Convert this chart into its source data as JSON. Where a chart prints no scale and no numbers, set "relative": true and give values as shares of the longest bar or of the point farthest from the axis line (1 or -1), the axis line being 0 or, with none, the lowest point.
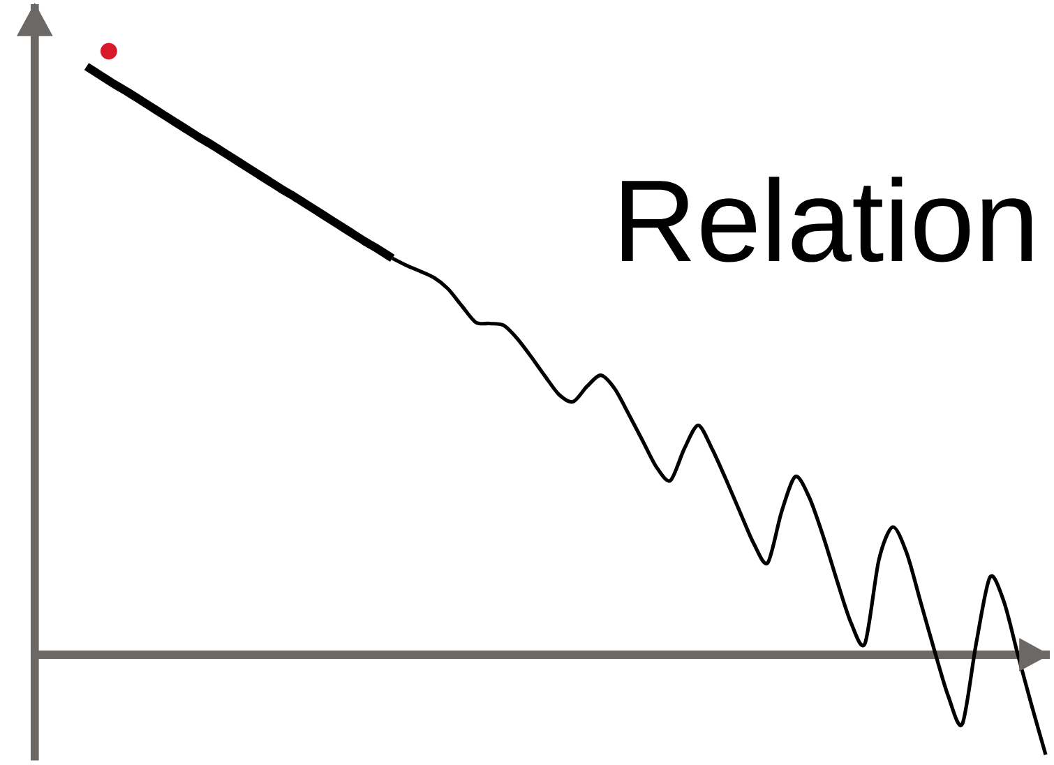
{
  "chart_data": {
    "type": "line",
    "title": "Relation",
    "relative": true,
    "categories": [
      null,
      null,
      null,
      null,
      null,
      null,
      null,
      null,
      null,
      null,
      null,
      null,
      null,
      null,
      null,
      null,
      null,
      null,
      null,
      null,
      null,
      null,
      null,
      null,
      null,
      null,
      null,
      null,
      null,
      null,
      null,
      null,
      null,
      null,
      null,
      null,
      null,
      null,
      null,
      null,
      null,
      null,
      null,
      null,
      null,
      null,
      null,
      null,
      null,
      null,
      null,
      null,
      null,
      null,
      null,
      null,
      null,
      null,
      null,
      null,
      null,
      null,
      null,
      null,
      null,
      null,
      null,
      null,
      null,
      null
    ],
    "series": [
      {
        "color": "#000000",
        "values": [
          1.0,
          0.985,
          0.97,
          0.956,
          0.941,
          0.926,
          0.911,
          0.896,
          0.881,
          0.867,
          0.852,
          0.837,
          0.822,
          0.807,
          0.792,
          0.778,
          0.763,
          0.748,
          0.733,
          0.718,
          0.703,
          0.689,
          0.674,
          null,
          null,
          null,
          null,
          null,
          null,
          null,
          null,
          null,
          null,
          null,
          null,
          null,
          null,
          null,
          null,
          null,
          null,
          null,
          null,
          null,
          null,
          null,
          null,
          null,
          null,
          null,
          null,
          null,
          null,
          null,
          null,
          null,
          null,
          null,
          null,
          null,
          null,
          null,
          null,
          null,
          null,
          null,
          null,
          null,
          null,
          null
        ]
      },
      {
        "color": "#000000",
        "values": [
          null,
          null,
          null,
          null,
          null,
          null,
          null,
          null,
          null,
          null,
          null,
          null,
          null,
          null,
          null,
          null,
          null,
          null,
          null,
          null,
          null,
          null,
          0.674,
          0.662,
          0.652,
          0.641,
          0.622,
          0.593,
          0.565,
          0.563,
          0.56,
          0.537,
          0.506,
          0.473,
          0.442,
          0.43,
          0.456,
          0.475,
          0.452,
          0.409,
          0.364,
          0.319,
          0.296,
          0.35,
          0.39,
          0.35,
          0.298,
          0.243,
          0.189,
          0.156,
          0.243,
          0.303,
          0.267,
          0.201,
          0.125,
          0.054,
          0.019,
          0.161,
          0.217,
          0.173,
          0.09,
          0.007,
          -0.071,
          -0.118,
          0.019,
          0.132,
          0.09,
          0.0,
          -0.087,
          -0.17
        ]
      }
    ]
  }
}
